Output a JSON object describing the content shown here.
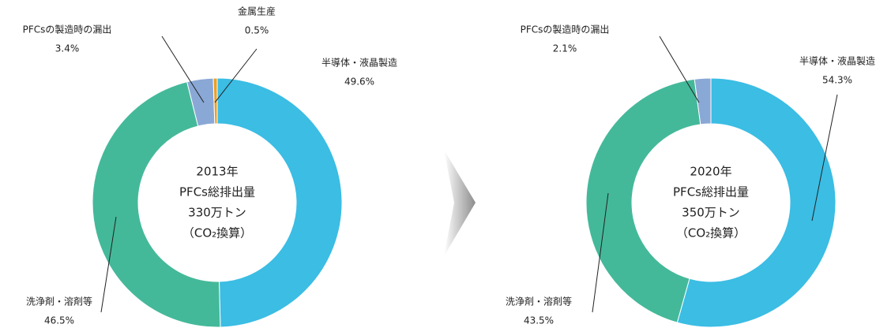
{
  "chart_data": [
    {
      "type": "donut",
      "center_text": [
        "2013年",
        "PFCs総排出量",
        "330万トン",
        "（CO₂換算）"
      ],
      "categories": [
        "半導体・液晶製造",
        "洗浄剤・溶剤等",
        "PFCsの製造時の漏出",
        "金属生産"
      ],
      "values": [
        49.6,
        46.5,
        3.4,
        0.5
      ],
      "value_labels": [
        "49.6%",
        "46.5%",
        "3.4%",
        "0.5%"
      ],
      "colors": [
        "#3bbde4",
        "#44b99a",
        "#8aa8d6",
        "#e7a129"
      ]
    },
    {
      "type": "donut",
      "center_text": [
        "2020年",
        "PFCs総排出量",
        "350万トン",
        "（CO₂換算）"
      ],
      "categories": [
        "半導体・液晶製造",
        "洗浄剤・溶剤等",
        "PFCsの製造時の漏出"
      ],
      "values": [
        54.3,
        43.5,
        2.1
      ],
      "value_labels": [
        "54.3%",
        "43.5%",
        "2.1%"
      ],
      "colors": [
        "#3bbde4",
        "#44b99a",
        "#8aa8d6"
      ]
    }
  ]
}
